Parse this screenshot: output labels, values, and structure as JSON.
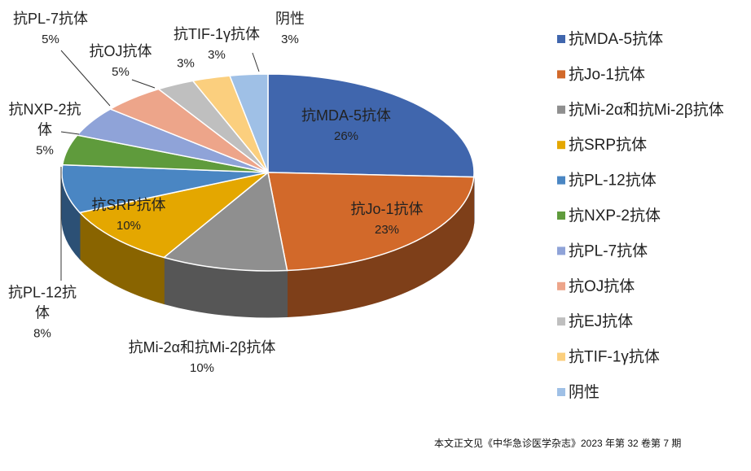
{
  "chart_data": {
    "type": "pie3d",
    "categories": [
      "抗MDA-5抗体",
      "抗Jo-1抗体",
      "抗Mi-2α和抗Mi-2β抗体",
      "抗SRP抗体",
      "抗PL-12抗体",
      "抗NXP-2抗体",
      "抗PL-7抗体",
      "抗OJ抗体",
      "抗EJ抗体",
      "抗TIF-1γ抗体",
      "阴性"
    ],
    "values": [
      26,
      23,
      10,
      10,
      8,
      5,
      5,
      5,
      3,
      3,
      3
    ],
    "value_labels": [
      "26%",
      "23%",
      "10%",
      "10%",
      "8%",
      "5%",
      "5%",
      "5%",
      "3%",
      "3%",
      "3%"
    ],
    "colors": [
      "#4066ad",
      "#d2692a",
      "#8f8f8f",
      "#e4a700",
      "#4a86c3",
      "#5f9b3c",
      "#8fa3d8",
      "#eda58a",
      "#bfbfbf",
      "#fbcf7e",
      "#9fc0e6"
    ],
    "legend_position": "right",
    "note": "本文正文见《中华急诊医学杂志》2023 年第 32 卷第 7 期"
  }
}
